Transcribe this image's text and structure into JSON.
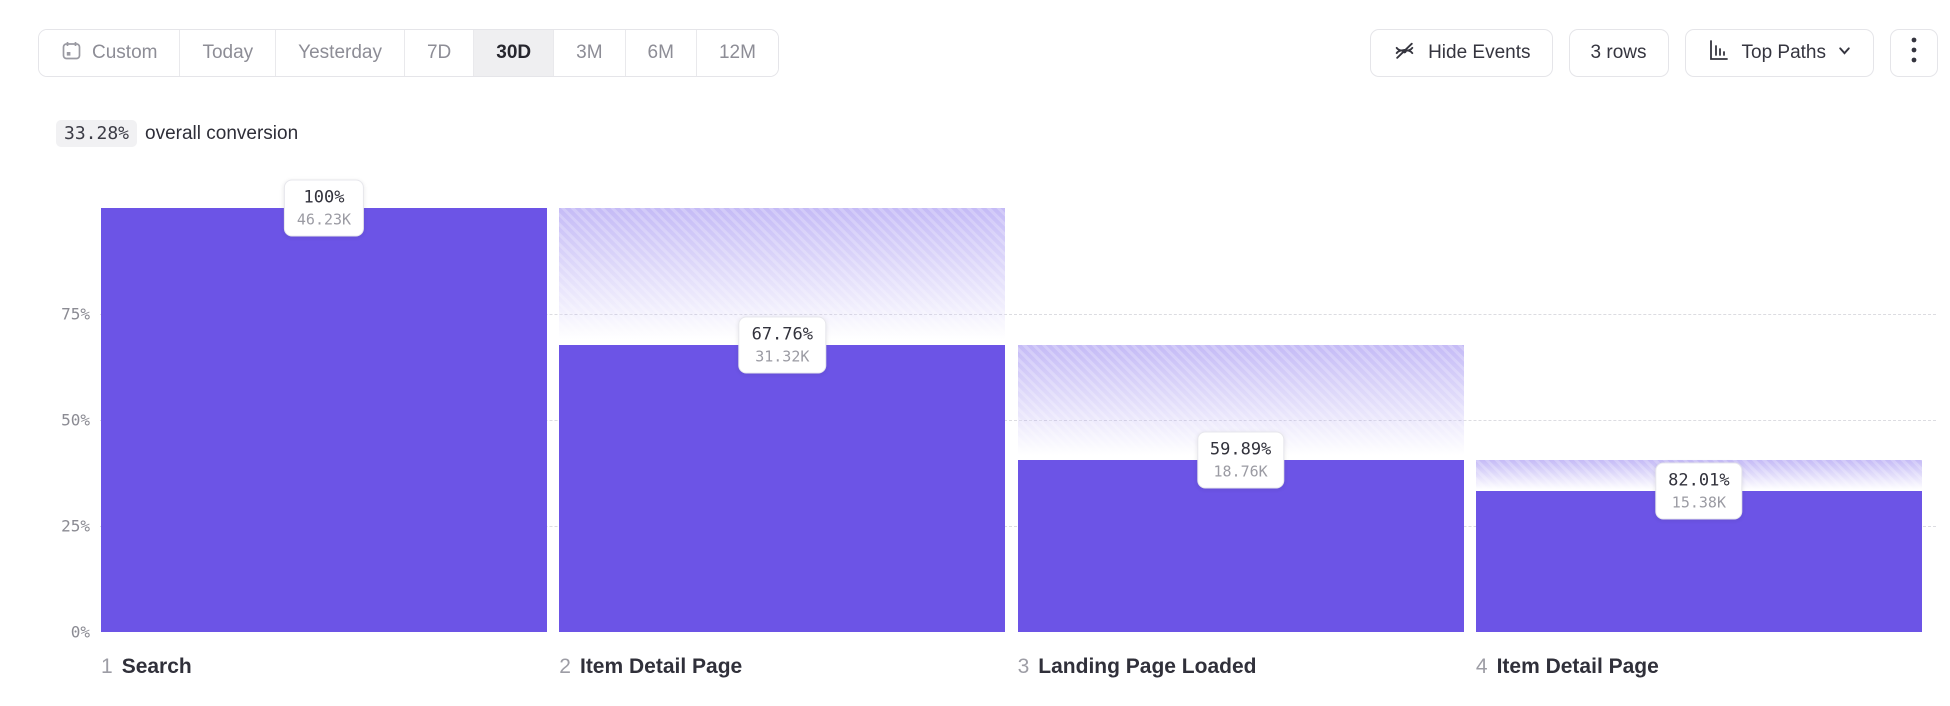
{
  "toolbar": {
    "date_ranges": [
      "Custom",
      "Today",
      "Yesterday",
      "7D",
      "30D",
      "3M",
      "6M",
      "12M"
    ],
    "selected_range": "30D",
    "hide_events_label": "Hide Events",
    "rows_label": "3 rows",
    "top_paths_label": "Top Paths"
  },
  "summary": {
    "conversion_pct": "33.28%",
    "conversion_text": "overall conversion"
  },
  "chart_data": {
    "type": "bar",
    "subtype": "funnel",
    "title": "33.28% overall conversion",
    "y_ticks": [
      "0%",
      "25%",
      "50%",
      "75%"
    ],
    "ylim": [
      0,
      100
    ],
    "grid": "dashed horizontal at 25/50/75",
    "steps": [
      {
        "number": "1",
        "label": "Search",
        "conversion": "100%",
        "count": "46.23K",
        "pct_of_first": 100
      },
      {
        "number": "2",
        "label": "Item Detail Page",
        "conversion": "67.76%",
        "count": "31.32K",
        "pct_of_first": 67.76
      },
      {
        "number": "3",
        "label": "Landing Page Loaded",
        "conversion": "59.89%",
        "count": "18.76K",
        "pct_of_first": 40.58
      },
      {
        "number": "4",
        "label": "Item Detail Page",
        "conversion": "82.01%",
        "count": "15.38K",
        "pct_of_first": 33.27
      }
    ]
  },
  "colors": {
    "bar": "#6C54E6",
    "dropoff_gradient_top": "#beb3f4",
    "selected_segment_bg": "#efeff1",
    "border": "#e5e5e9",
    "grid": "#dcdce1"
  }
}
